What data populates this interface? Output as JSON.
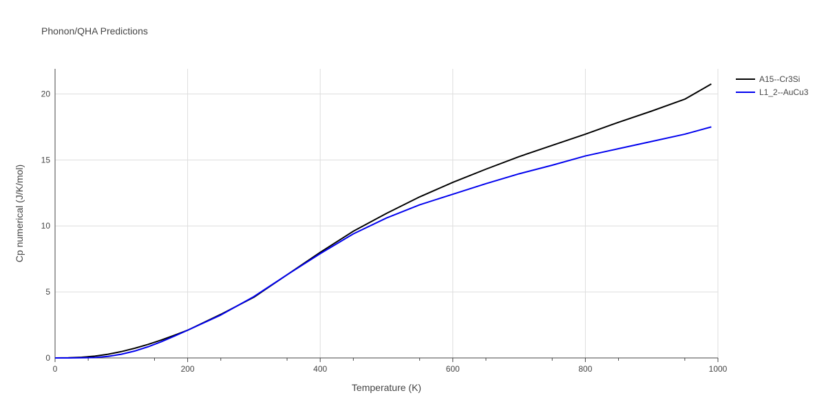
{
  "chart_data": {
    "type": "line",
    "title": "Phonon/QHA Predictions",
    "xlabel": "Temperature (K)",
    "ylabel": "Cp numerical (J/K/mol)",
    "xlim": [
      0,
      1000
    ],
    "ylim": [
      0,
      21.9
    ],
    "xticks": [
      0,
      200,
      400,
      600,
      800,
      1000
    ],
    "yticks": [
      0,
      5,
      10,
      15,
      20
    ],
    "grid": true,
    "legend_position": "top-right",
    "series": [
      {
        "name": "A15--Cr3Si",
        "color": "#000000",
        "x": [
          0,
          20,
          40,
          60,
          80,
          100,
          120,
          140,
          160,
          180,
          200,
          250,
          300,
          350,
          400,
          450,
          500,
          550,
          600,
          650,
          700,
          750,
          800,
          850,
          900,
          950,
          990
        ],
        "y": [
          0,
          0.01,
          0.05,
          0.14,
          0.28,
          0.48,
          0.73,
          1.02,
          1.35,
          1.72,
          2.1,
          3.3,
          4.6,
          6.3,
          8.0,
          9.6,
          10.95,
          12.2,
          13.3,
          14.3,
          15.25,
          16.1,
          16.95,
          17.85,
          18.7,
          19.6,
          20.75
        ]
      },
      {
        "name": "L1_2--AuCu3",
        "color": "#0000ee",
        "x": [
          0,
          20,
          40,
          60,
          80,
          100,
          120,
          140,
          160,
          180,
          200,
          250,
          300,
          350,
          400,
          450,
          500,
          550,
          600,
          650,
          700,
          750,
          800,
          850,
          900,
          950,
          990
        ],
        "y": [
          0,
          0.0,
          0.01,
          0.03,
          0.12,
          0.28,
          0.52,
          0.84,
          1.22,
          1.65,
          2.1,
          3.25,
          4.65,
          6.3,
          7.9,
          9.4,
          10.6,
          11.6,
          12.4,
          13.2,
          13.95,
          14.6,
          15.3,
          15.85,
          16.4,
          16.95,
          17.5
        ]
      }
    ]
  }
}
